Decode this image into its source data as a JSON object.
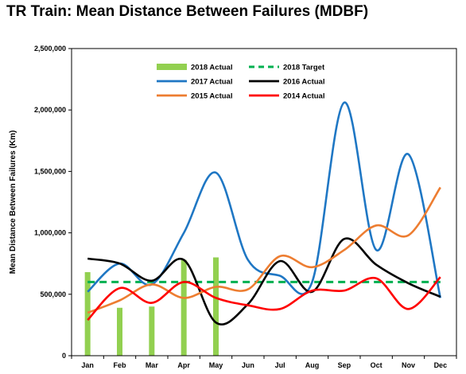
{
  "chart_data": {
    "type": "line",
    "title": "TR Train: Mean Distance Between Failures (MDBF)",
    "xlabel": "",
    "ylabel": "Mean Distance Between Failures (Km)",
    "categories": [
      "Jan",
      "Feb",
      "Mar",
      "Apr",
      "May",
      "Jun",
      "Jul",
      "Aug",
      "Sep",
      "Oct",
      "Nov",
      "Dec"
    ],
    "ylim": [
      0,
      2500000
    ],
    "yticks": [
      0,
      500000,
      1000000,
      1500000,
      2000000,
      2500000
    ],
    "ytick_labels": [
      "0",
      "500,000",
      "1,000,000",
      "1,500,000",
      "2,000,000",
      "2,500,000"
    ],
    "grid": false,
    "legend_position": "top",
    "bars": {
      "name": "2018 Actual",
      "color": "#92d050",
      "values": [
        680000,
        390000,
        400000,
        780000,
        800000
      ]
    },
    "target": {
      "name": "2018 Target",
      "color": "#00b050",
      "value": 600000
    },
    "series": [
      {
        "name": "2017 Actual",
        "color": "#1f77c4",
        "values": [
          520000,
          750000,
          580000,
          1000000,
          1490000,
          780000,
          650000,
          600000,
          2060000,
          860000,
          1640000,
          470000
        ]
      },
      {
        "name": "2016 Actual",
        "color": "#000000",
        "values": [
          790000,
          750000,
          610000,
          780000,
          270000,
          420000,
          770000,
          520000,
          950000,
          740000,
          590000,
          480000
        ]
      },
      {
        "name": "2015 Actual",
        "color": "#ed7d31",
        "values": [
          350000,
          450000,
          580000,
          470000,
          560000,
          540000,
          810000,
          720000,
          860000,
          1060000,
          980000,
          1370000
        ]
      },
      {
        "name": "2014 Actual",
        "color": "#ff0000",
        "values": [
          290000,
          550000,
          430000,
          600000,
          470000,
          410000,
          380000,
          530000,
          530000,
          630000,
          380000,
          640000
        ]
      }
    ]
  }
}
